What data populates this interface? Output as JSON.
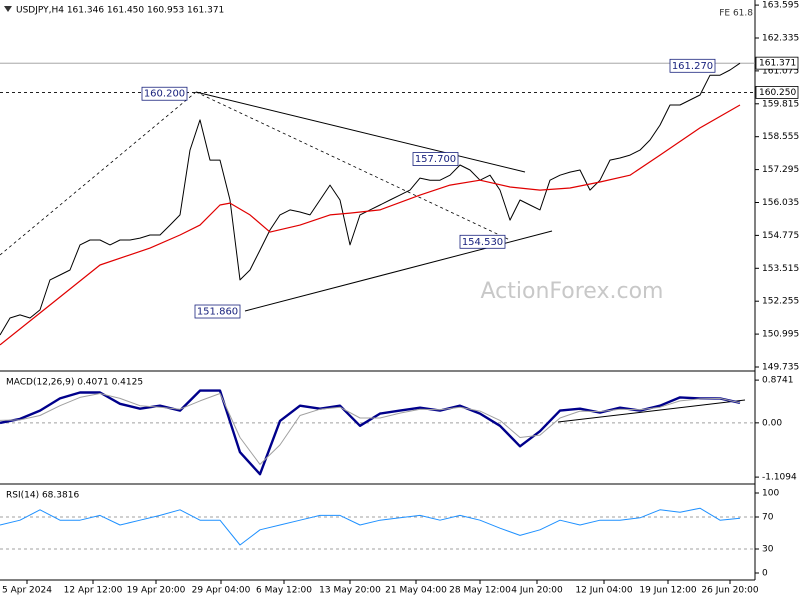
{
  "chart_data": [
    {
      "type": "line",
      "title": "USDJPY,H4  161.346 161.450 160.953 161.371",
      "annotation": "FE 61.8",
      "watermark": "ActionForex.com",
      "xlim": [
        0,
        75.5
      ],
      "xticks": [
        {
          "value": 2.7,
          "label": "5 Apr 2024"
        },
        {
          "value": 9.3,
          "label": "12 Apr 12:00"
        },
        {
          "value": 15.6,
          "label": "19 Apr 20:00"
        },
        {
          "value": 22.1,
          "label": "29 Apr 04:00"
        },
        {
          "value": 28.4,
          "label": "6 May 12:00"
        },
        {
          "value": 35,
          "label": "13 May 20:00"
        },
        {
          "value": 41.6,
          "label": "21 May 04:00"
        },
        {
          "value": 48,
          "label": "28 May 12:00"
        },
        {
          "value": 53.7,
          "label": "4 Jun 20:00"
        },
        {
          "value": 60.4,
          "label": "12 Jun 04:00"
        },
        {
          "value": 66.8,
          "label": "19 Jun 12:00"
        },
        {
          "value": 73,
          "label": "26 Jun 20:00"
        }
      ],
      "ylim": [
        149.62,
        163.79
      ],
      "yticks": [
        163.595,
        162.335,
        161.075,
        159.815,
        158.555,
        157.295,
        156.035,
        154.775,
        153.515,
        152.255,
        150.995,
        149.735
      ],
      "hlines": [
        {
          "value": 161.371,
          "label": "161.371",
          "style": "solid"
        },
        {
          "value": 160.25,
          "label": "160.250",
          "style": "dashed"
        }
      ],
      "labels": [
        {
          "value": 160.2,
          "label": "160.200"
        },
        {
          "value": 157.7,
          "label": "157.700"
        },
        {
          "value": 154.53,
          "label": "154.530"
        },
        {
          "value": 151.86,
          "label": "151.860"
        },
        {
          "value": 161.27,
          "label": "161.270"
        }
      ],
      "series": [
        {
          "color": "#000000",
          "width": 1,
          "x": [
            0,
            1,
            2,
            3,
            4,
            5,
            6,
            7,
            8,
            9,
            10,
            11,
            12,
            13,
            14,
            15,
            16,
            17,
            18,
            19,
            20,
            21,
            22,
            23,
            24,
            25,
            26,
            27,
            28,
            29,
            30,
            31,
            32,
            33,
            34,
            35,
            36,
            37,
            38,
            39,
            40,
            41,
            42,
            43,
            44,
            45,
            46,
            47,
            48,
            49,
            50,
            51,
            52,
            53,
            54,
            55,
            56,
            57,
            58,
            59,
            60,
            61,
            62,
            63,
            64,
            65,
            66,
            67,
            68,
            69,
            70,
            71,
            72,
            73,
            74
          ],
          "values": [
            150.96,
            151.61,
            151.73,
            151.61,
            151.92,
            153.07,
            153.26,
            153.45,
            154.41,
            154.6,
            154.6,
            154.41,
            154.6,
            154.6,
            154.67,
            154.79,
            154.79,
            155.17,
            155.56,
            158.04,
            159.2,
            157.66,
            157.66,
            156.13,
            153.07,
            153.45,
            154.21,
            154.98,
            155.56,
            155.75,
            155.67,
            155.56,
            156.13,
            156.7,
            156.13,
            154.41,
            155.56,
            155.75,
            155.94,
            156.13,
            156.32,
            156.51,
            156.97,
            156.89,
            156.89,
            157.08,
            157.47,
            157.28,
            156.89,
            157.08,
            156.51,
            155.36,
            156.13,
            155.94,
            155.75,
            156.89,
            157.08,
            157.2,
            157.28,
            156.51,
            156.89,
            157.66,
            157.74,
            157.85,
            158.04,
            158.43,
            159.0,
            159.77,
            159.77,
            159.96,
            160.15,
            160.91,
            160.91,
            161.11,
            161.371
          ]
        },
        {
          "color": "#e00000",
          "width": 1.2,
          "x": [
            0,
            5,
            10,
            15,
            18,
            20,
            22,
            23,
            25,
            27,
            30,
            33,
            35,
            38,
            42,
            45,
            48,
            51,
            54,
            57,
            60,
            63,
            66,
            70,
            74
          ],
          "values": [
            150.58,
            152.11,
            153.64,
            154.29,
            154.79,
            155.17,
            155.94,
            156.01,
            155.56,
            154.9,
            155.17,
            155.56,
            155.63,
            155.75,
            156.32,
            156.7,
            156.89,
            156.63,
            156.51,
            156.59,
            156.82,
            157.08,
            157.85,
            158.89,
            159.77
          ]
        }
      ]
    },
    {
      "type": "line",
      "title": "MACD(12,26,9) 0.4071 0.4125",
      "ylim": [
        -1.23,
        1.04
      ],
      "yticks": [
        0.8741,
        {
          "value": 0,
          "label": "0.00"
        },
        -1.1094
      ],
      "grid": true,
      "series": [
        {
          "color": "#00008b",
          "width": 2.4,
          "x": [
            0,
            2,
            4,
            6,
            8,
            10,
            12,
            14,
            16,
            18,
            20,
            22,
            24,
            26,
            28,
            30,
            32,
            34,
            36,
            38,
            40,
            42,
            44,
            46,
            48,
            50,
            52,
            54,
            56,
            58,
            60,
            62,
            64,
            66,
            68,
            70,
            72,
            74
          ],
          "values": [
            0,
            0.08,
            0.25,
            0.5,
            0.62,
            0.62,
            0.39,
            0.29,
            0.35,
            0.25,
            0.66,
            0.66,
            -0.6,
            -1.05,
            0.04,
            0.35,
            0.29,
            0.35,
            -0.06,
            0.19,
            0.25,
            0.31,
            0.25,
            0.35,
            0.19,
            -0.06,
            -0.48,
            -0.17,
            0.25,
            0.29,
            0.21,
            0.31,
            0.25,
            0.35,
            0.52,
            0.5,
            0.5,
            0.41
          ]
        },
        {
          "color": "#a0a0a0",
          "width": 1,
          "x": [
            0,
            2,
            4,
            6,
            8,
            10,
            12,
            14,
            16,
            18,
            20,
            22,
            24,
            26,
            28,
            30,
            32,
            34,
            36,
            38,
            40,
            42,
            44,
            46,
            48,
            50,
            52,
            54,
            56,
            58,
            60,
            62,
            64,
            66,
            68,
            70,
            72,
            74
          ],
          "values": [
            0.05,
            0.06,
            0.15,
            0.35,
            0.52,
            0.6,
            0.5,
            0.35,
            0.32,
            0.28,
            0.45,
            0.6,
            -0.3,
            -0.85,
            -0.45,
            0.15,
            0.28,
            0.32,
            0.1,
            0.1,
            0.2,
            0.28,
            0.27,
            0.32,
            0.24,
            0.05,
            -0.3,
            -0.25,
            0.1,
            0.24,
            0.23,
            0.28,
            0.27,
            0.32,
            0.45,
            0.49,
            0.5,
            0.41
          ]
        }
      ]
    },
    {
      "type": "line",
      "title": "RSI(14) 68.3816",
      "ylim": [
        -8.75,
        110
      ],
      "yticks": [
        100,
        70,
        30,
        0
      ],
      "grid": true,
      "series": [
        {
          "color": "#1e90ff",
          "width": 1,
          "x": [
            0,
            2,
            4,
            6,
            8,
            10,
            12,
            14,
            16,
            18,
            20,
            22,
            24,
            26,
            28,
            30,
            32,
            34,
            36,
            38,
            40,
            42,
            44,
            46,
            48,
            50,
            52,
            54,
            56,
            58,
            60,
            62,
            64,
            66,
            68,
            70,
            72,
            74
          ],
          "values": [
            60,
            66,
            79,
            66,
            66,
            72,
            60,
            66,
            72,
            79,
            66,
            66,
            35,
            54,
            60,
            66,
            72,
            72,
            60,
            66,
            69,
            72,
            66,
            72,
            66,
            56,
            47,
            54,
            66,
            60,
            66,
            66,
            69,
            79,
            76,
            81,
            66,
            68.3816
          ]
        }
      ]
    }
  ]
}
